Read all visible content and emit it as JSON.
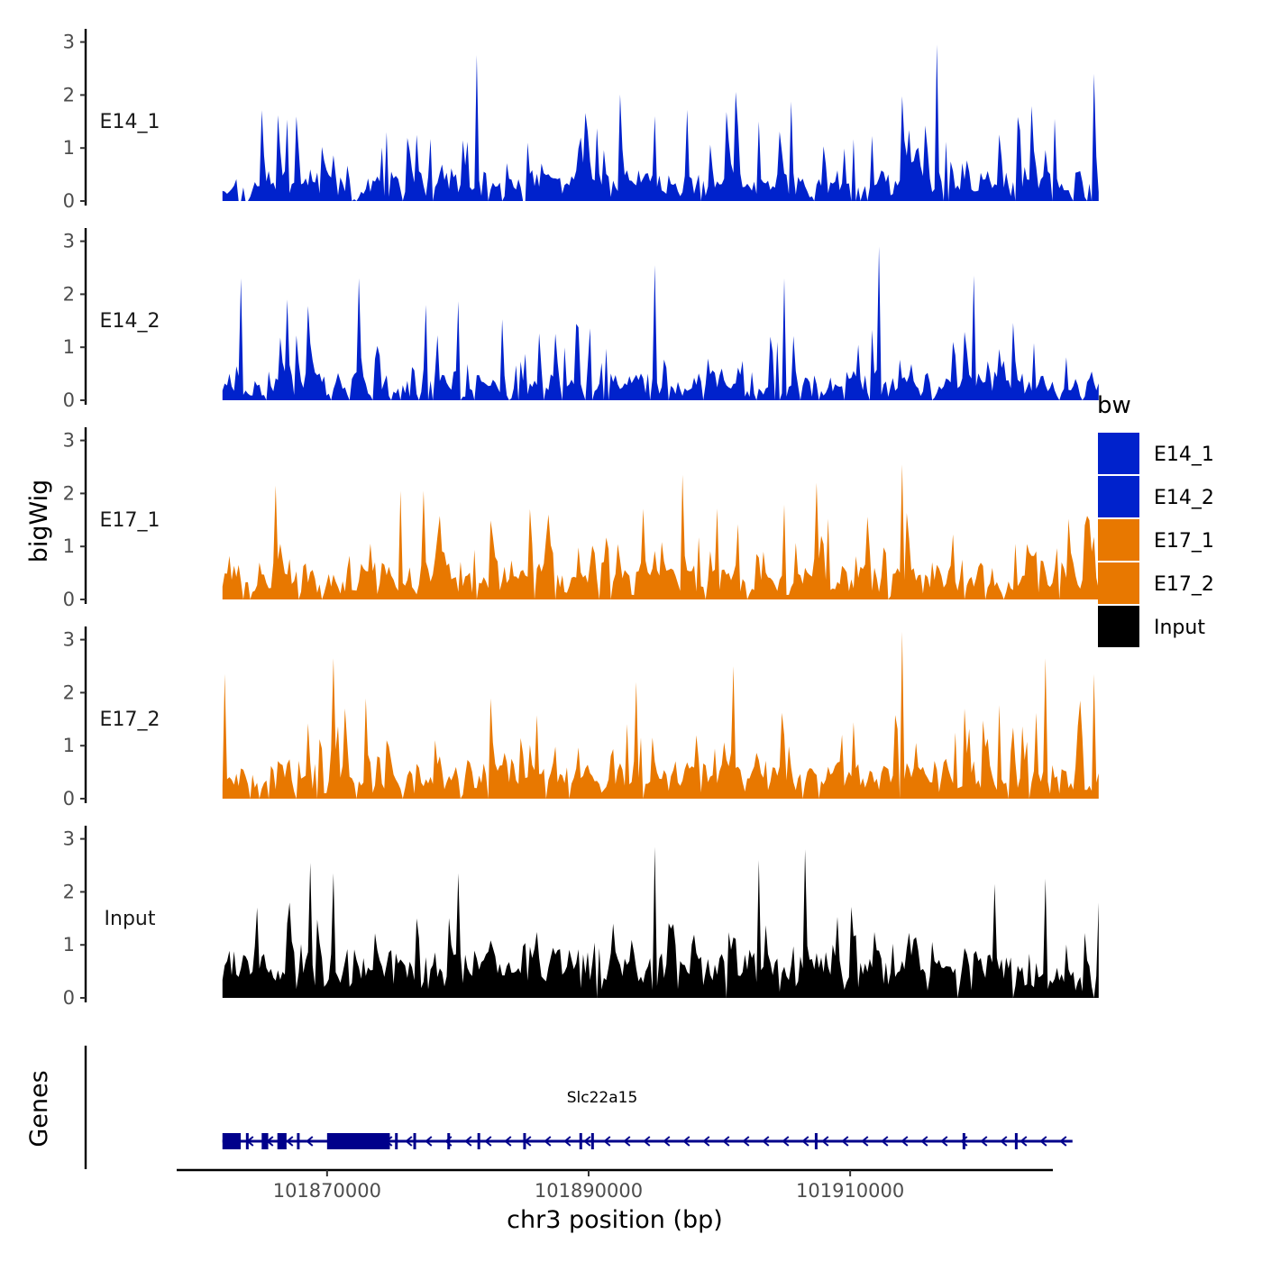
{
  "chart_data": {
    "type": "area",
    "ylabel": "bigWig",
    "xlabel": "chr3 position (bp)",
    "genes_label": "Genes",
    "xlim": [
      101858500,
      101925500
    ],
    "data_range": [
      101862000,
      101929000
    ],
    "x_ticks": [
      101870000,
      101890000,
      101910000
    ],
    "x_tick_labels": [
      "101870000",
      "101890000",
      "101910000"
    ],
    "ylim": [
      0,
      3.3
    ],
    "y_ticks": [
      0,
      1,
      2,
      3
    ],
    "y_tick_labels": [
      "0",
      "1",
      "2",
      "3"
    ],
    "legend": {
      "title": "bw",
      "entries": [
        {
          "label": "E14_1",
          "color": "#0022CC"
        },
        {
          "label": "E14_2",
          "color": "#0022CC"
        },
        {
          "label": "E17_1",
          "color": "#E87800"
        },
        {
          "label": "E17_2",
          "color": "#E87800"
        },
        {
          "label": "Input",
          "color": "#000000"
        }
      ]
    },
    "series": [
      {
        "name": "E14_1",
        "color": "#0022CC",
        "seed": 11,
        "base": 0.45,
        "peak_rate": 0.17,
        "peak_max": 1.6,
        "gap_rate": 0.07,
        "peaks": [
          [
            101874500,
            1.3
          ],
          [
            101881400,
            2.75
          ],
          [
            101916700,
            2.95
          ],
          [
            101925700,
            1.55
          ],
          [
            101928700,
            2.4
          ],
          [
            101903000,
            1.5
          ],
          [
            101895100,
            1.6
          ]
        ]
      },
      {
        "name": "E14_2",
        "color": "#0022CC",
        "seed": 23,
        "base": 0.42,
        "peak_rate": 0.17,
        "peak_max": 1.5,
        "gap_rate": 0.07,
        "peaks": [
          [
            101863400,
            2.3
          ],
          [
            101867000,
            1.9
          ],
          [
            101872500,
            2.3
          ],
          [
            101877600,
            1.8
          ],
          [
            101895100,
            2.55
          ],
          [
            101905000,
            2.3
          ],
          [
            101912200,
            2.9
          ],
          [
            101919500,
            2.35
          ]
        ]
      },
      {
        "name": "E17_1",
        "color": "#E87800",
        "seed": 37,
        "base": 0.55,
        "peak_rate": 0.22,
        "peak_max": 1.3,
        "gap_rate": 0.04,
        "peaks": [
          [
            101866000,
            2.15
          ],
          [
            101875700,
            2.05
          ],
          [
            101877400,
            2.05
          ],
          [
            101897100,
            2.35
          ],
          [
            101907400,
            2.2
          ],
          [
            101914000,
            2.55
          ]
        ]
      },
      {
        "name": "E17_2",
        "color": "#E87800",
        "seed": 51,
        "base": 0.55,
        "peak_rate": 0.22,
        "peak_max": 1.4,
        "gap_rate": 0.04,
        "peaks": [
          [
            101862100,
            2.35
          ],
          [
            101870500,
            2.65
          ],
          [
            101893600,
            2.2
          ],
          [
            101901000,
            2.5
          ],
          [
            101914000,
            3.15
          ],
          [
            101925000,
            2.65
          ],
          [
            101928700,
            2.35
          ]
        ]
      },
      {
        "name": "Input",
        "color": "#000000",
        "seed": 73,
        "base": 0.75,
        "peak_rate": 0.25,
        "peak_max": 1.3,
        "gap_rate": 0.02,
        "peaks": [
          [
            101868800,
            2.55
          ],
          [
            101870500,
            2.35
          ],
          [
            101880100,
            2.35
          ],
          [
            101895100,
            2.85
          ],
          [
            101903000,
            2.6
          ],
          [
            101906500,
            2.8
          ],
          [
            101921000,
            2.15
          ],
          [
            101925000,
            2.25
          ]
        ]
      }
    ],
    "gene": {
      "name": "Slc22a15",
      "strand": "-",
      "start": 101862000,
      "end": 101927000,
      "exons": [
        [
          101862000,
          101863400
        ],
        [
          101865000,
          101865500
        ],
        [
          101866200,
          101866900
        ],
        [
          101870000,
          101874800
        ],
        [
          101881500,
          101881600
        ],
        [
          101885000,
          101885100
        ]
      ],
      "color": "#00008B"
    }
  }
}
